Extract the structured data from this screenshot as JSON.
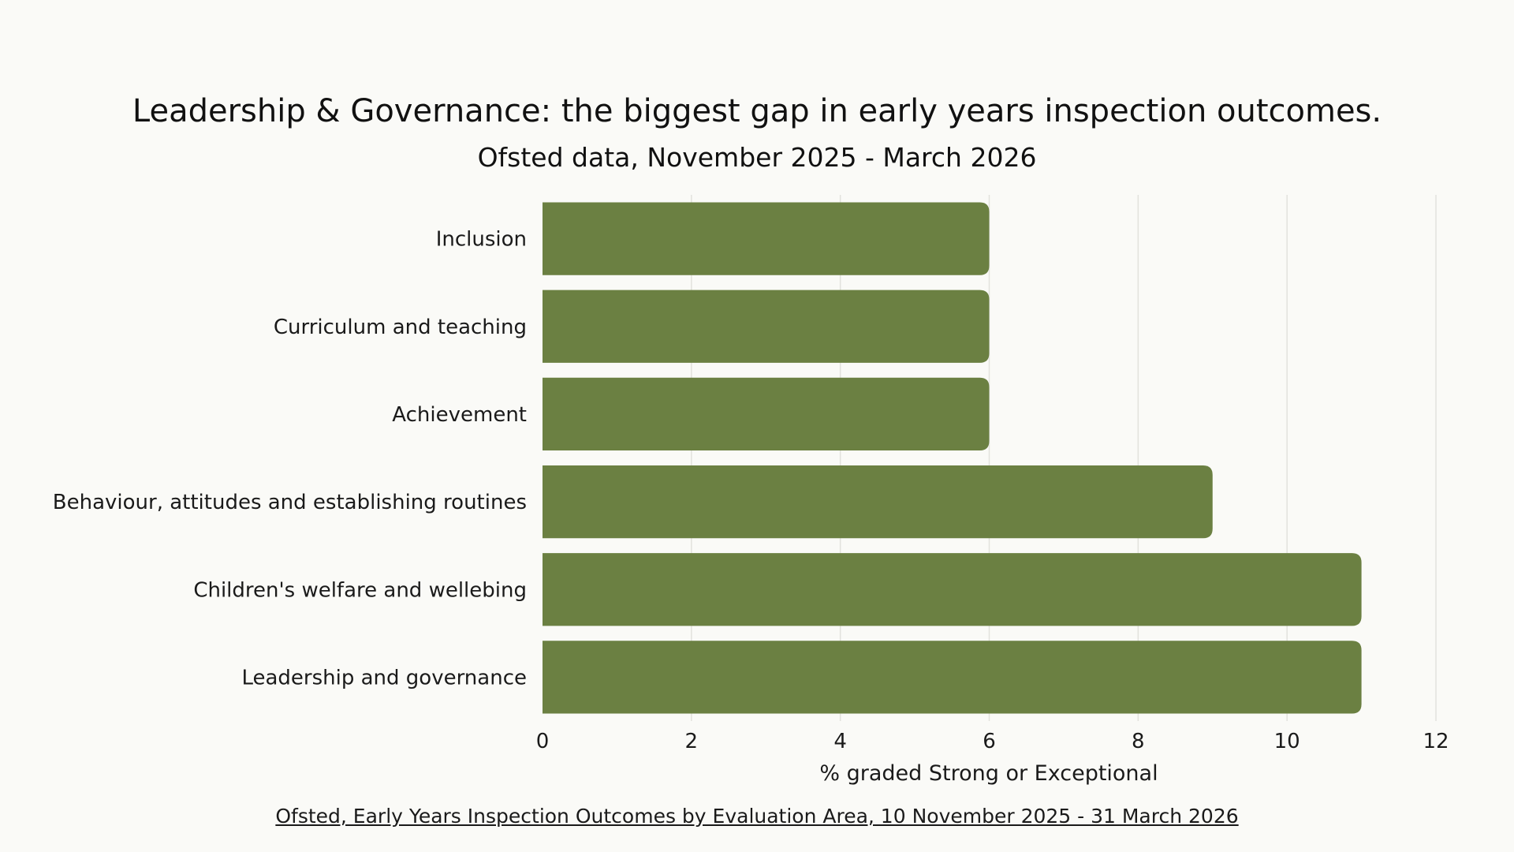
{
  "chart_data": {
    "type": "bar",
    "orientation": "horizontal",
    "title": "Leadership & Governance: the biggest gap in early years inspection outcomes.",
    "subtitle": "Ofsted data, November 2025 - March 2026",
    "categories": [
      "Inclusion",
      "Curriculum and teaching",
      "Achievement",
      "Behaviour, attitudes and establishing routines",
      "Children's welfare and wellebing",
      "Leadership and governance"
    ],
    "values": [
      6,
      6,
      6,
      9,
      11,
      11
    ],
    "xlabel": "% graded Strong or Exceptional",
    "ylabel": "",
    "xlim": [
      0,
      12
    ],
    "xticks": [
      "0",
      "2",
      "4",
      "6",
      "8",
      "10",
      "12"
    ],
    "grid": true,
    "legend": "none",
    "bar_color": "#6b8042",
    "grid_color": "#e2e2dd"
  },
  "source": {
    "text": "Ofsted, Early Years Inspection Outcomes by Evaluation Area, 10 November 2025 - 31 March 2026"
  }
}
